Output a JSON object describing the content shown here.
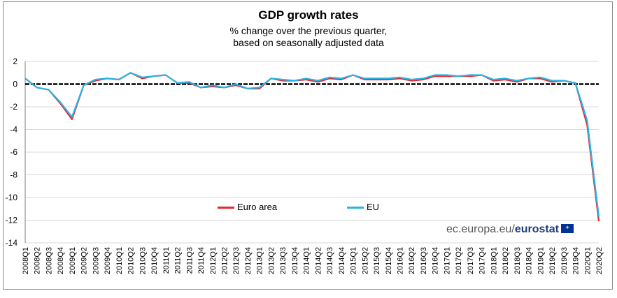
{
  "header": {
    "title": "GDP growth rates",
    "subtitle_line1": "% change over the previous quarter,",
    "subtitle_line2": "based on seasonally adjusted data"
  },
  "source": {
    "prefix": "ec.europa.eu/",
    "brand": "eurostat"
  },
  "colors": {
    "euro_area": "#e8262b",
    "eu": "#2cb4e4",
    "zero_line": "#000000",
    "grid": "#d9d9d9"
  },
  "chart_data": {
    "type": "line",
    "title": "GDP growth rates",
    "subtitle": "% change over the previous quarter, based on seasonally adjusted data",
    "xlabel": "",
    "ylabel": "",
    "ylim": [
      -14,
      2
    ],
    "yticks": [
      2,
      0,
      -2,
      -4,
      -6,
      -8,
      -10,
      -12,
      -14
    ],
    "grid": true,
    "legend_position": "bottom-center",
    "x": [
      "2008Q1",
      "2008Q2",
      "2008Q3",
      "2008Q4",
      "2009Q1",
      "2009Q2",
      "2009Q3",
      "2009Q4",
      "2010Q1",
      "2010Q2",
      "2010Q3",
      "2010Q4",
      "2011Q1",
      "2011Q2",
      "2011Q3",
      "2011Q4",
      "2012Q1",
      "2012Q2",
      "2012Q3",
      "2012Q4",
      "2013Q1",
      "2013Q2",
      "2013Q3",
      "2013Q4",
      "2014Q1",
      "2014Q2",
      "2014Q3",
      "2014Q4",
      "2015Q1",
      "2015Q2",
      "2015Q3",
      "2015Q4",
      "2016Q1",
      "2016Q2",
      "2016Q3",
      "2016Q4",
      "2017Q1",
      "2017Q2",
      "2017Q3",
      "2017Q4",
      "2018Q1",
      "2018Q2",
      "2018Q3",
      "2018Q4",
      "2019Q1",
      "2019Q2",
      "2019Q3",
      "2019Q4",
      "2020Q1",
      "2020Q2"
    ],
    "series": [
      {
        "name": "Euro area",
        "color": "#e8262b",
        "values": [
          0.5,
          -0.3,
          -0.5,
          -1.7,
          -3.1,
          -0.1,
          0.3,
          0.5,
          0.4,
          1.0,
          0.5,
          0.7,
          0.8,
          0.1,
          0.1,
          -0.3,
          -0.2,
          -0.3,
          -0.1,
          -0.4,
          -0.4,
          0.5,
          0.3,
          0.3,
          0.4,
          0.2,
          0.5,
          0.4,
          0.8,
          0.4,
          0.4,
          0.4,
          0.5,
          0.3,
          0.4,
          0.7,
          0.7,
          0.7,
          0.7,
          0.8,
          0.3,
          0.4,
          0.2,
          0.5,
          0.5,
          0.2,
          0.3,
          0.1,
          -3.6,
          -12.1
        ]
      },
      {
        "name": "EU",
        "color": "#2cb4e4",
        "values": [
          0.5,
          -0.3,
          -0.5,
          -1.6,
          -2.9,
          -0.1,
          0.4,
          0.5,
          0.4,
          1.0,
          0.6,
          0.7,
          0.8,
          0.1,
          0.2,
          -0.3,
          -0.1,
          -0.3,
          0.0,
          -0.4,
          -0.3,
          0.5,
          0.4,
          0.3,
          0.5,
          0.3,
          0.6,
          0.5,
          0.8,
          0.5,
          0.5,
          0.5,
          0.6,
          0.4,
          0.5,
          0.8,
          0.8,
          0.7,
          0.8,
          0.8,
          0.4,
          0.5,
          0.3,
          0.5,
          0.6,
          0.3,
          0.3,
          0.1,
          -3.2,
          -11.7
        ]
      }
    ]
  }
}
